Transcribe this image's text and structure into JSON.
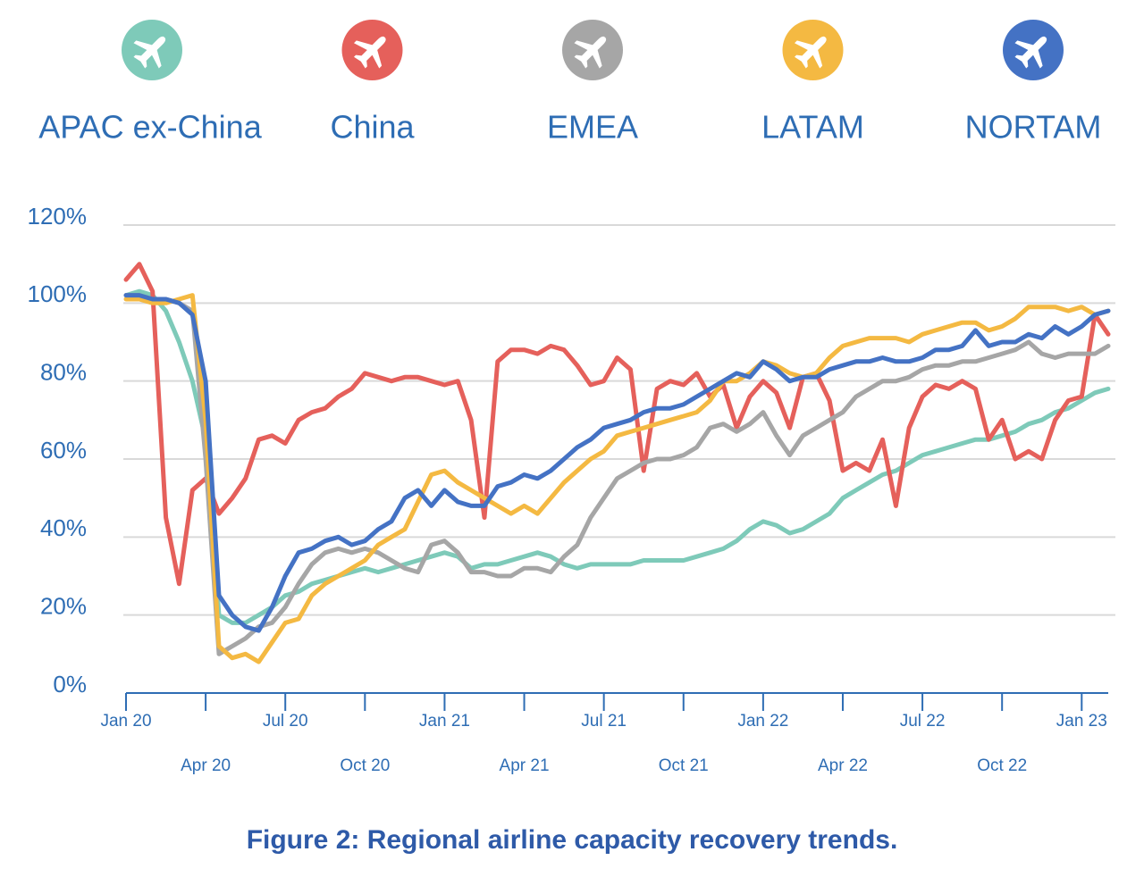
{
  "chart_data": {
    "type": "line",
    "title": "Figure 2: Regional airline capacity recovery trends.",
    "x": [
      0,
      0.5,
      1,
      1.5,
      2,
      2.5,
      3,
      3.5,
      4,
      4.5,
      5,
      5.5,
      6,
      6.5,
      7,
      7.5,
      8,
      8.5,
      9,
      9.5,
      10,
      10.5,
      11,
      11.5,
      12,
      12.5,
      13,
      13.5,
      14,
      14.5,
      15,
      15.5,
      16,
      16.5,
      17,
      17.5,
      18,
      18.5,
      19,
      19.5,
      20,
      20.5,
      21,
      21.5,
      22,
      22.5,
      23,
      23.5,
      24,
      24.5,
      25,
      25.5,
      26,
      26.5,
      27,
      27.5,
      28,
      28.5,
      29,
      29.5,
      30,
      30.5,
      31,
      31.5,
      32,
      32.5,
      33,
      33.5,
      34,
      34.5,
      35,
      35.5,
      36,
      36.5,
      37
    ],
    "xlim": [
      0,
      37
    ],
    "xticks": [
      {
        "value": 0,
        "label": "Jan 20"
      },
      {
        "value": 3,
        "label": "Apr 20"
      },
      {
        "value": 6,
        "label": "Jul 20"
      },
      {
        "value": 9,
        "label": "Oct 20"
      },
      {
        "value": 12,
        "label": "Jan 21"
      },
      {
        "value": 15,
        "label": "Apr 21"
      },
      {
        "value": 18,
        "label": "Jul 21"
      },
      {
        "value": 21,
        "label": "Oct 21"
      },
      {
        "value": 24,
        "label": "Jan 22"
      },
      {
        "value": 27,
        "label": "Apr 22"
      },
      {
        "value": 30,
        "label": "Jul 22"
      },
      {
        "value": 33,
        "label": "Oct 22"
      },
      {
        "value": 36,
        "label": "Jan 23"
      }
    ],
    "ylim": [
      0,
      120
    ],
    "yticks": [
      {
        "value": 0,
        "label": "0%"
      },
      {
        "value": 20,
        "label": "20%"
      },
      {
        "value": 40,
        "label": "40%"
      },
      {
        "value": 60,
        "label": "60%"
      },
      {
        "value": 80,
        "label": "80%"
      },
      {
        "value": 100,
        "label": "100%"
      },
      {
        "value": 120,
        "label": "120%"
      }
    ],
    "grid": true,
    "series": [
      {
        "name": "APAC ex-China",
        "color": "#7ecab9",
        "values": [
          102,
          103,
          102,
          98,
          90,
          80,
          65,
          20,
          18,
          18,
          20,
          22,
          25,
          26,
          28,
          29,
          30,
          31,
          32,
          31,
          32,
          33,
          34,
          35,
          36,
          35,
          32,
          33,
          33,
          34,
          35,
          36,
          35,
          33,
          32,
          33,
          33,
          33,
          33,
          34,
          34,
          34,
          34,
          35,
          36,
          37,
          39,
          42,
          44,
          43,
          41,
          42,
          44,
          46,
          50,
          52,
          54,
          56,
          57,
          59,
          61,
          62,
          63,
          64,
          65,
          65,
          66,
          67,
          69,
          70,
          72,
          73,
          75,
          77,
          78
        ]
      },
      {
        "name": "China",
        "color": "#e5605b",
        "values": [
          106,
          110,
          103,
          45,
          28,
          52,
          55,
          46,
          50,
          55,
          65,
          66,
          64,
          70,
          72,
          73,
          76,
          78,
          82,
          81,
          80,
          81,
          81,
          80,
          79,
          80,
          70,
          45,
          85,
          88,
          88,
          87,
          89,
          88,
          84,
          79,
          80,
          86,
          83,
          57,
          78,
          80,
          79,
          82,
          76,
          79,
          68,
          76,
          80,
          77,
          68,
          81,
          82,
          75,
          57,
          59,
          57,
          65,
          48,
          68,
          76,
          79,
          78,
          80,
          78,
          65,
          70,
          60,
          62,
          60,
          70,
          75,
          76,
          97,
          92
        ]
      },
      {
        "name": "EMEA",
        "color": "#a6a6a6",
        "values": [
          102,
          102,
          101,
          101,
          100,
          98,
          60,
          10,
          12,
          14,
          17,
          18,
          22,
          28,
          33,
          36,
          37,
          36,
          37,
          36,
          34,
          32,
          31,
          38,
          39,
          36,
          31,
          31,
          30,
          30,
          32,
          32,
          31,
          35,
          38,
          45,
          50,
          55,
          57,
          59,
          60,
          60,
          61,
          63,
          68,
          69,
          67,
          69,
          72,
          66,
          61,
          66,
          68,
          70,
          72,
          76,
          78,
          80,
          80,
          81,
          83,
          84,
          84,
          85,
          85,
          86,
          87,
          88,
          90,
          87,
          86,
          87,
          87,
          87,
          89
        ]
      },
      {
        "name": "LATAM",
        "color": "#f4b942",
        "values": [
          101,
          101,
          100,
          100,
          101,
          102,
          70,
          12,
          9,
          10,
          8,
          13,
          18,
          19,
          25,
          28,
          30,
          32,
          34,
          38,
          40,
          42,
          49,
          56,
          57,
          54,
          52,
          50,
          48,
          46,
          48,
          46,
          50,
          54,
          57,
          60,
          62,
          66,
          67,
          68,
          69,
          70,
          71,
          72,
          75,
          80,
          80,
          82,
          85,
          84,
          82,
          81,
          82,
          86,
          89,
          90,
          91,
          91,
          91,
          90,
          92,
          93,
          94,
          95,
          95,
          93,
          94,
          96,
          99,
          99,
          99,
          98,
          99,
          97,
          98
        ]
      },
      {
        "name": "NORTAM",
        "color": "#4472c4",
        "values": [
          102,
          102,
          101,
          101,
          100,
          97,
          80,
          25,
          20,
          17,
          16,
          22,
          30,
          36,
          37,
          39,
          40,
          38,
          39,
          42,
          44,
          50,
          52,
          48,
          52,
          49,
          48,
          48,
          53,
          54,
          56,
          55,
          57,
          60,
          63,
          65,
          68,
          69,
          70,
          72,
          73,
          73,
          74,
          76,
          78,
          80,
          82,
          81,
          85,
          83,
          80,
          81,
          81,
          83,
          84,
          85,
          85,
          86,
          85,
          85,
          86,
          88,
          88,
          89,
          93,
          89,
          90,
          90,
          92,
          91,
          94,
          92,
          94,
          97,
          98
        ]
      }
    ]
  }
}
